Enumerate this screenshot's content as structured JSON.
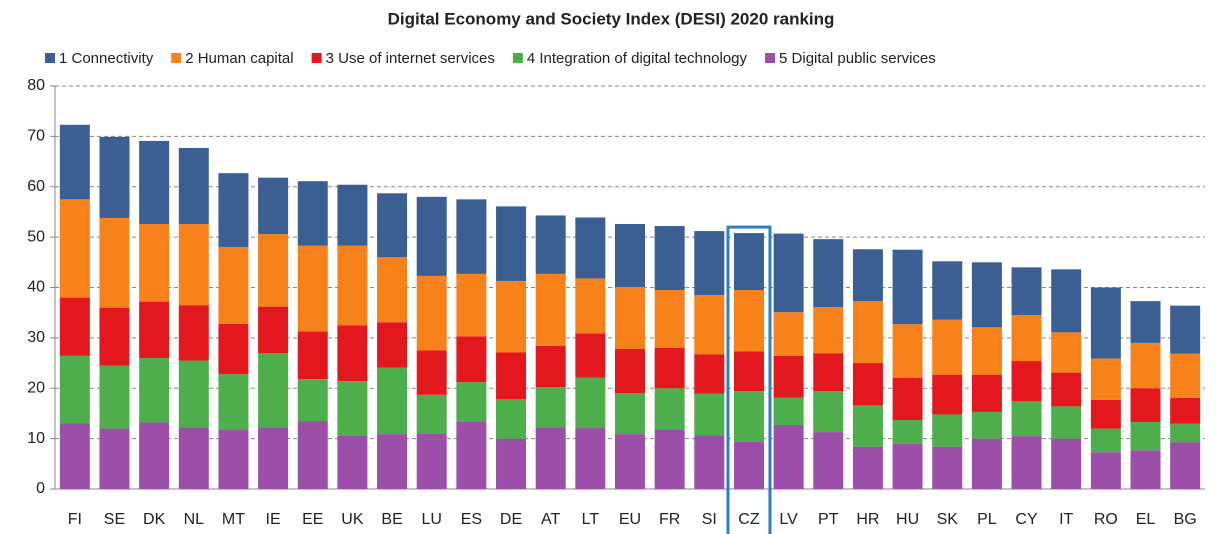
{
  "chart_data": {
    "type": "stacked_bar",
    "title": "Digital Economy and Society Index (DESI) 2020 ranking",
    "categories": [
      "FI",
      "SE",
      "DK",
      "NL",
      "MT",
      "IE",
      "EE",
      "UK",
      "BE",
      "LU",
      "ES",
      "DE",
      "AT",
      "LT",
      "EU",
      "FR",
      "SI",
      "CZ",
      "LV",
      "PT",
      "HR",
      "HU",
      "SK",
      "PL",
      "CY",
      "IT",
      "RO",
      "EL",
      "BG"
    ],
    "series": [
      {
        "name": "1 Connectivity",
        "color": "#3c5f93",
        "values": [
          14.8,
          16.1,
          16.5,
          15.1,
          14.7,
          11.2,
          12.8,
          12.1,
          12.7,
          15.7,
          14.8,
          14.8,
          11.6,
          12.1,
          12.5,
          12.7,
          12.7,
          11.3,
          15.6,
          13.5,
          10.3,
          14.8,
          11.6,
          12.9,
          9.5,
          12.5,
          14.1,
          8.3,
          9.5
        ]
      },
      {
        "name": "2 Human capital",
        "color": "#f7821b",
        "values": [
          19.5,
          17.8,
          15.4,
          16.1,
          15.2,
          14.4,
          17,
          15.8,
          12.9,
          14.8,
          12.4,
          14.2,
          14.3,
          10.9,
          12.3,
          11.5,
          11.8,
          12.2,
          8.7,
          9.2,
          12.3,
          10.6,
          10.9,
          9.4,
          9.1,
          8,
          8.2,
          9,
          8.8
        ]
      },
      {
        "name": "3 Use of internet services",
        "color": "#e3171e",
        "values": [
          11.5,
          11.5,
          11.2,
          11,
          10,
          9.2,
          9.5,
          11.1,
          9,
          8.8,
          9.1,
          9.3,
          8.2,
          8.8,
          8.8,
          8,
          7.8,
          7.9,
          8.3,
          7.5,
          8.4,
          8.4,
          7.9,
          7.4,
          8,
          6.7,
          5.7,
          6.7,
          5.1
        ]
      },
      {
        "name": "4 Integration of digital technology",
        "color": "#4eae4b",
        "values": [
          13.5,
          12.5,
          12.8,
          13.3,
          11.1,
          14.8,
          8.4,
          10.8,
          13.2,
          7.7,
          7.9,
          7.8,
          8,
          10,
          8.1,
          8.2,
          8.2,
          10,
          5.4,
          8.1,
          8.2,
          4.7,
          6.4,
          5.3,
          6.9,
          6.4,
          4.7,
          5.6,
          3.7
        ]
      },
      {
        "name": "5 Digital public services",
        "color": "#9b4fa8",
        "values": [
          13,
          12,
          13.2,
          12.2,
          11.7,
          12.2,
          13.4,
          10.6,
          10.9,
          11,
          13.3,
          10,
          12.2,
          12.1,
          10.9,
          11.8,
          10.7,
          9.4,
          12.7,
          11.3,
          8.4,
          9,
          8.4,
          10,
          10.5,
          10,
          7.3,
          7.7,
          9.3
        ]
      }
    ],
    "ylim": [
      0,
      80
    ],
    "yticks": [
      0,
      10,
      20,
      30,
      40,
      50,
      60,
      70,
      80
    ],
    "grid": true,
    "highlight": "CZ",
    "highlight_color": "#2f7ec1"
  }
}
